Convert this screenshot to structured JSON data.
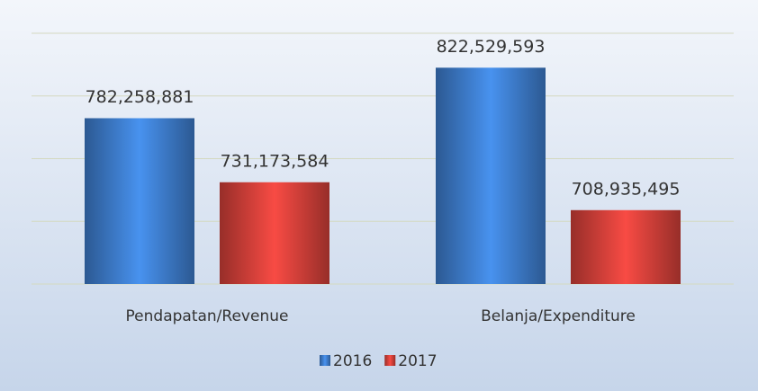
{
  "chart_data": {
    "type": "bar",
    "categories": [
      "Pendapatan/Revenue",
      "Belanja/Expenditure"
    ],
    "series": [
      {
        "name": "2016",
        "color": "#3f7fd0",
        "values": [
          782258881,
          822529593
        ],
        "value_labels": [
          "782,258,881",
          "822,529,593"
        ]
      },
      {
        "name": "2017",
        "color": "#d8413b",
        "values": [
          731173584,
          708935495
        ],
        "value_labels": [
          "731,173,584",
          "708,935,495"
        ]
      }
    ],
    "ylim": [
      650000000,
      850000000
    ],
    "yticks": [
      650000000,
      700000000,
      750000000,
      800000000,
      850000000
    ],
    "grid": true,
    "legend": "bottom"
  }
}
